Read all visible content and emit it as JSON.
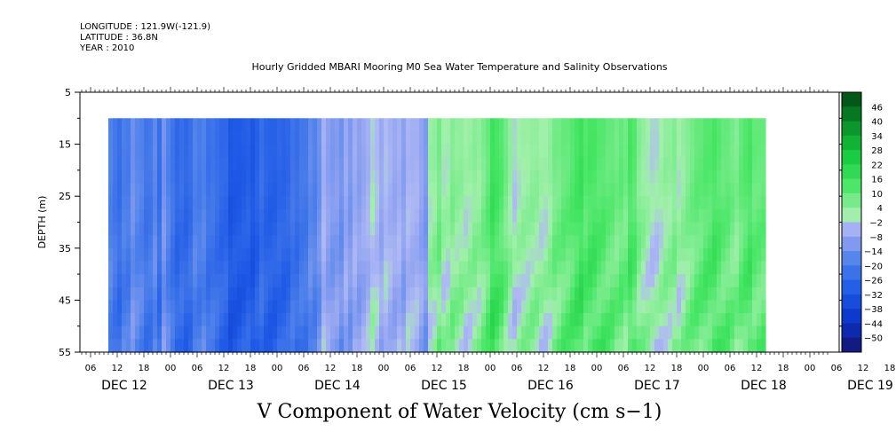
{
  "header": {
    "longitude": "LONGITUDE : 121.9W(-121.9)",
    "latitude": "LATITUDE : 36.8N",
    "year": "YEAR : 2010"
  },
  "chart_data": {
    "type": "heatmap",
    "title": "Hourly Gridded MBARI Mooring M0 Sea Water Temperature and Salinity Observations",
    "xlabel": "V Component of Water Velocity (cm s−1)",
    "ylabel": "DEPTH (m)",
    "ylim": [
      5,
      55
    ],
    "yticks": [
      "5",
      "15",
      "25",
      "35",
      "45",
      "55"
    ],
    "x_hour_labels": [
      "06",
      "12",
      "18",
      "00",
      "06",
      "12",
      "18",
      "00",
      "06",
      "12",
      "18",
      "00",
      "06",
      "12",
      "18",
      "00",
      "06",
      "12",
      "18",
      "00",
      "06",
      "12",
      "18",
      "00",
      "06",
      "12",
      "18",
      "00",
      "06",
      "12",
      "18",
      "00"
    ],
    "x_day_labels": [
      "DEC 12",
      "DEC 13",
      "DEC 14",
      "DEC 15",
      "DEC 16",
      "DEC 17",
      "DEC 18",
      "DEC 19"
    ],
    "data_depth_range": [
      10,
      55
    ],
    "colorbar": {
      "labels": [
        "46",
        "40",
        "34",
        "28",
        "22",
        "16",
        "10",
        "4",
        "−2",
        "−8",
        "−14",
        "−20",
        "−26",
        "−32",
        "−38",
        "−44",
        "−50"
      ],
      "min": -50,
      "max": 52
    },
    "series": [
      {
        "start": "DEC 12 10:00",
        "values": [
          -14,
          -17,
          -20,
          -15,
          -16,
          -10,
          -13,
          -14,
          -18,
          -17,
          -12,
          -20,
          -9,
          -14,
          -18,
          -22,
          -20,
          -22,
          -20,
          -14,
          -16,
          -14,
          -19,
          -18,
          -20,
          -22,
          -22,
          -27,
          -26,
          -26,
          -25,
          -24,
          -27,
          -24,
          -20,
          -23,
          -24,
          -24,
          -22,
          -23,
          -22,
          -18,
          -20,
          -17,
          -17,
          -12,
          -14,
          -10,
          -2,
          -6,
          -8,
          -7,
          -10,
          -4,
          -8,
          -3,
          -6,
          -4,
          -2,
          2,
          0,
          -4,
          0,
          -2,
          -4,
          -2,
          -6,
          -1,
          -2,
          -2,
          -5,
          -8,
          5,
          6,
          10,
          4,
          4,
          8,
          6,
          6,
          4,
          5,
          7,
          6,
          9,
          12,
          18,
          16,
          14,
          10,
          6,
          2,
          4,
          5,
          5,
          6,
          6,
          4,
          4,
          6,
          10,
          10,
          12,
          12,
          14,
          16,
          18,
          14,
          16,
          16,
          14,
          14,
          12,
          12,
          10,
          12,
          10,
          16,
          14,
          8,
          6,
          4,
          2,
          2,
          4,
          6,
          6,
          8,
          4,
          6,
          8,
          10,
          12,
          12,
          14,
          14,
          16,
          14,
          12,
          12,
          10,
          8,
          12,
          14,
          16,
          12,
          12,
          12
        ]
      }
    ]
  }
}
